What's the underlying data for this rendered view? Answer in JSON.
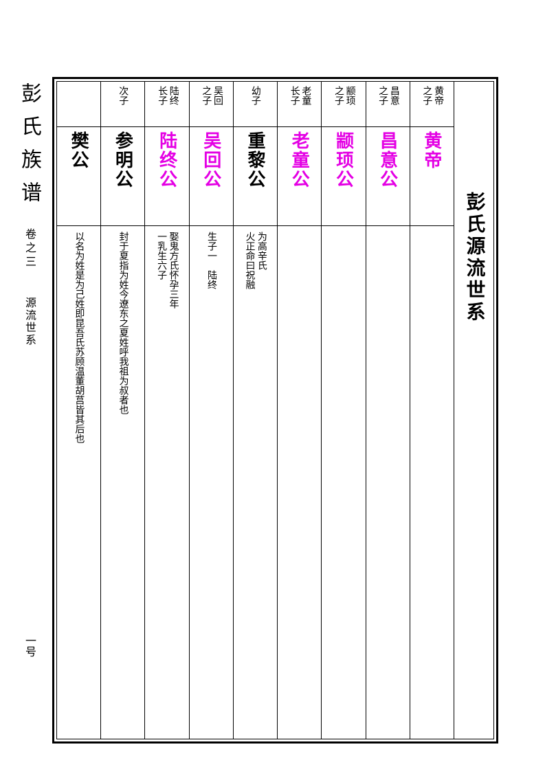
{
  "spine": {
    "title": "彭氏族谱",
    "volume": "卷之三",
    "section": "源流世系",
    "pagenum": "一号"
  },
  "main_title": "彭氏源流世系",
  "columns": [
    {
      "header": [
        "黄帝",
        "之子"
      ],
      "name": "黄帝",
      "name_color": "magenta",
      "desc": []
    },
    {
      "header": [
        "昌意",
        "之子"
      ],
      "name": "昌意公",
      "name_color": "magenta",
      "desc": []
    },
    {
      "header": [
        "颛顼",
        "之子"
      ],
      "name": "颛顼公",
      "name_color": "magenta",
      "desc": []
    },
    {
      "header": [
        "老童",
        "长子"
      ],
      "name": "老童公",
      "name_color": "magenta",
      "desc": []
    },
    {
      "header": [
        "",
        "幼子"
      ],
      "name": "重黎公",
      "name_color": "black",
      "desc": [
        "为高辛氏",
        "火正命曰祝融"
      ]
    },
    {
      "header": [
        "吴回",
        "之子"
      ],
      "name": "吴回公",
      "name_color": "magenta",
      "desc": [
        "生子一　陆终"
      ]
    },
    {
      "header": [
        "陆终",
        "长子"
      ],
      "name": "陆终公",
      "name_color": "magenta",
      "desc": [
        "娶鬼方氏怀孕三年",
        "一乳生六子"
      ]
    },
    {
      "header": [
        "",
        "次子"
      ],
      "name": "参明公",
      "name_color": "black",
      "desc": [
        "封于夏指为姓今遼东之夏姓呼我祖为叔者也"
      ]
    },
    {
      "header": [
        "",
        ""
      ],
      "name": "樊公",
      "name_color": "black",
      "desc": [
        "以名为姓是为己姓即昆吾氏苏顾温董胡莒皆其后也"
      ]
    }
  ]
}
